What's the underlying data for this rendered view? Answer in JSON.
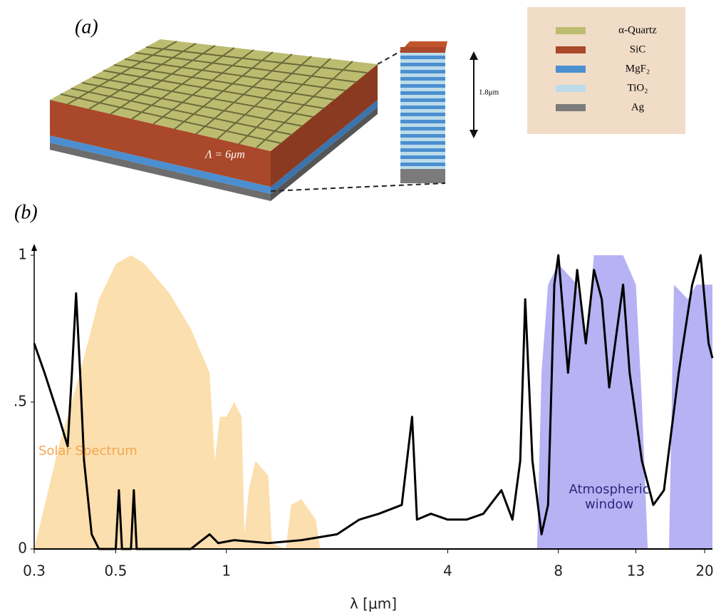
{
  "diagram": {
    "panel_a": "(a)",
    "panel_b": "(b)",
    "period_label": "Λ = 6μm",
    "height_label": "1.8μm",
    "legend": [
      {
        "label": "α-Quartz",
        "color": "#bcbc70"
      },
      {
        "label": "SiC",
        "color": "#a9482a"
      },
      {
        "label": "MgF₂",
        "color": "#4b8fd0"
      },
      {
        "label": "TiO₂",
        "color": "#bcdcea"
      },
      {
        "label": "Ag",
        "color": "#7b7b7b"
      }
    ]
  },
  "chart_data": {
    "type": "line",
    "xlabel": "λ [μm]",
    "xscale": "log",
    "xlim": [
      0.3,
      21
    ],
    "ylim": [
      0,
      1
    ],
    "xticks": [
      0.3,
      0.5,
      1,
      4,
      8,
      13,
      20
    ],
    "yticks": [
      0,
      {
        "value": 0.5,
        "label": ".5"
      },
      1
    ],
    "series": [
      {
        "name": "Solar Spectrum",
        "type": "area",
        "color": "#fcd9a0",
        "label_color": "#f2a653",
        "x": [
          0.3,
          0.35,
          0.4,
          0.45,
          0.5,
          0.55,
          0.6,
          0.7,
          0.8,
          0.9,
          0.93,
          0.96,
          1.0,
          1.05,
          1.1,
          1.12,
          1.15,
          1.2,
          1.3,
          1.33,
          1.45,
          1.5,
          1.6,
          1.75,
          1.8,
          2.0,
          4
        ],
        "values": [
          0,
          0.35,
          0.6,
          0.85,
          0.97,
          1.0,
          0.97,
          0.87,
          0.75,
          0.6,
          0.3,
          0.45,
          0.45,
          0.5,
          0.45,
          0.05,
          0.2,
          0.3,
          0.25,
          0.02,
          0,
          0.15,
          0.17,
          0.1,
          0,
          0,
          0
        ]
      },
      {
        "name": "Atmospheric window",
        "type": "area",
        "color": "#a9a4f2",
        "label_color": "#2b2a7a",
        "x": [
          7,
          7.2,
          7.5,
          8,
          9,
          9.5,
          10,
          12,
          13,
          13.5,
          14,
          16,
          16.5,
          18,
          19,
          21
        ],
        "values": [
          0,
          0.6,
          0.9,
          0.97,
          0.9,
          0.7,
          1.0,
          1.0,
          0.9,
          0.5,
          0,
          0,
          0.9,
          0.85,
          0.9,
          0.9
        ]
      },
      {
        "type": "line",
        "color": "#000000",
        "x": [
          0.3,
          0.32,
          0.35,
          0.37,
          0.38,
          0.39,
          0.4,
          0.41,
          0.43,
          0.45,
          0.5,
          0.51,
          0.52,
          0.55,
          0.56,
          0.57,
          0.8,
          0.9,
          0.95,
          1.05,
          1.3,
          1.6,
          2,
          2.3,
          2.6,
          3.0,
          3.2,
          3.3,
          3.6,
          4,
          4.5,
          5.0,
          5.6,
          6.0,
          6.3,
          6.5,
          6.8,
          7.2,
          7.5,
          7.8,
          8,
          8.5,
          9,
          9.5,
          10,
          10.5,
          11,
          12,
          12.5,
          13.5,
          14.5,
          15.5,
          17,
          18.5,
          19.5,
          20.5,
          21
        ],
        "values": [
          0.7,
          0.6,
          0.45,
          0.35,
          0.6,
          0.87,
          0.6,
          0.3,
          0.05,
          0,
          0,
          0.2,
          0,
          0,
          0.2,
          0,
          0,
          0.05,
          0.02,
          0.03,
          0.02,
          0.03,
          0.05,
          0.1,
          0.12,
          0.15,
          0.45,
          0.1,
          0.12,
          0.1,
          0.1,
          0.12,
          0.2,
          0.1,
          0.3,
          0.85,
          0.3,
          0.05,
          0.15,
          0.9,
          1.0,
          0.6,
          0.95,
          0.7,
          0.95,
          0.85,
          0.55,
          0.9,
          0.6,
          0.3,
          0.15,
          0.2,
          0.6,
          0.9,
          1.0,
          0.7,
          0.65
        ]
      }
    ]
  }
}
